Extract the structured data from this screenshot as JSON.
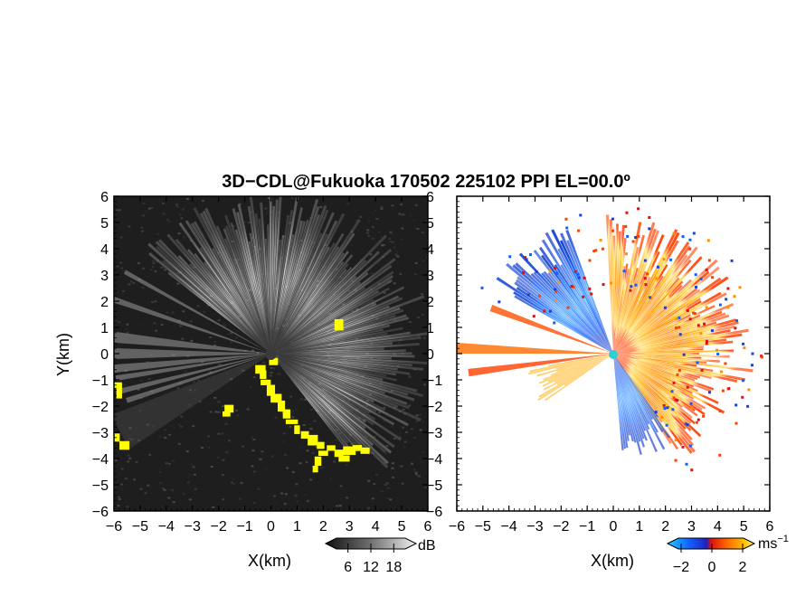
{
  "title": "3D−CDL@Fukuoka 170502 225102 PPI EL=00.0º",
  "chart_data": [
    {
      "type": "heatmap",
      "panel": "intensity",
      "xlabel": "X(km)",
      "ylabel": "Y(km)",
      "xlim": [
        -6,
        6
      ],
      "ylim": [
        -6,
        6
      ],
      "x_ticks": [
        "−6",
        "−5",
        "−4",
        "−3",
        "−2",
        "−1",
        "0",
        "1",
        "2",
        "3",
        "4",
        "5",
        "6"
      ],
      "y_ticks": [
        "6",
        "5",
        "4",
        "3",
        "2",
        "1",
        "0",
        "−1",
        "−2",
        "−3",
        "−4",
        "−5",
        "−6"
      ],
      "colorbar": {
        "unit": "dB",
        "tick_labels": [
          "6",
          "12",
          "18"
        ],
        "colors": [
          "#101010",
          "#3a3a3a",
          "#707070",
          "#a8a8a8",
          "#e6e6e6"
        ]
      },
      "highlight_color": "#ffff00",
      "background_color": "#1e1e1e"
    },
    {
      "type": "heatmap",
      "panel": "doppler_velocity",
      "xlabel": "X(km)",
      "xlim": [
        -6,
        6
      ],
      "ylim": [
        -6,
        6
      ],
      "x_ticks": [
        "−6",
        "−5",
        "−4",
        "−3",
        "−2",
        "−1",
        "0",
        "1",
        "2",
        "3",
        "4",
        "5",
        "6"
      ],
      "colorbar": {
        "unit": "ms",
        "unit_exponent": "−1",
        "tick_labels": [
          "−2",
          "0",
          "2"
        ],
        "colors": [
          "#20d0ff",
          "#1060ff",
          "#2020c0",
          "#e01010",
          "#ff7000",
          "#ffc000",
          "#fff080"
        ]
      },
      "radar_marker_color": "#30d0d0"
    }
  ]
}
